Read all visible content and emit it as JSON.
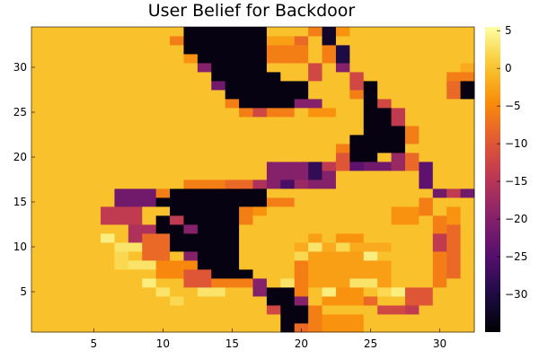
{
  "chart_data": {
    "type": "heatmap",
    "title": "User Belief for Backdoor",
    "xlabel": "",
    "ylabel": "",
    "xlim": [
      0.5,
      32.5
    ],
    "ylim": [
      0.5,
      34.5
    ],
    "x_ticks": [
      5,
      10,
      15,
      20,
      25,
      30
    ],
    "y_ticks": [
      5,
      10,
      15,
      20,
      25,
      30
    ],
    "colorbar": {
      "colormap": "inferno",
      "range": [
        -35,
        5.5
      ],
      "ticks": [
        5,
        0,
        -5,
        -10,
        -15,
        -20,
        -25,
        -30
      ],
      "tick_labels": [
        "5",
        "0",
        "−5",
        "−10",
        "−15",
        "−20",
        "−25",
        "−30"
      ]
    },
    "grid": false,
    "legend": "none",
    "default_value": 0,
    "features": [
      {
        "region": "top black wedge",
        "x": [
          12,
          17
        ],
        "y": [
          29,
          34
        ],
        "value": -34
      },
      {
        "region": "upper black blob",
        "x": [
          15,
          20
        ],
        "y": [
          26,
          32
        ],
        "value": -34
      },
      {
        "region": "middle black blob",
        "x": [
          9,
          17
        ],
        "y": [
          7,
          16
        ],
        "value": -34
      },
      {
        "region": "lower black column",
        "x": [
          18,
          20
        ],
        "y": [
          1,
          5
        ],
        "value": -34
      },
      {
        "region": "right black band",
        "x": [
          24,
          26
        ],
        "y": [
          20,
          28
        ],
        "value": -34
      },
      {
        "region": "right black patch",
        "x": [
          29,
          30
        ],
        "y": [
          13,
          16
        ],
        "value": -32
      },
      {
        "region": "far right black cell",
        "x": [
          32,
          32
        ],
        "y": [
          27,
          28
        ],
        "value": -34
      },
      {
        "region": "inner ring orange",
        "x": [
          21,
          25
        ],
        "y": [
          5,
          10
        ],
        "value": -3
      },
      {
        "region": "ring edge purple",
        "x": [
          19,
          28
        ],
        "y": [
          17,
          19
        ],
        "value": -24
      },
      {
        "region": "bright pale cells",
        "x": [
          6,
          14
        ],
        "y": [
          5,
          12
        ],
        "value": 4
      }
    ]
  }
}
